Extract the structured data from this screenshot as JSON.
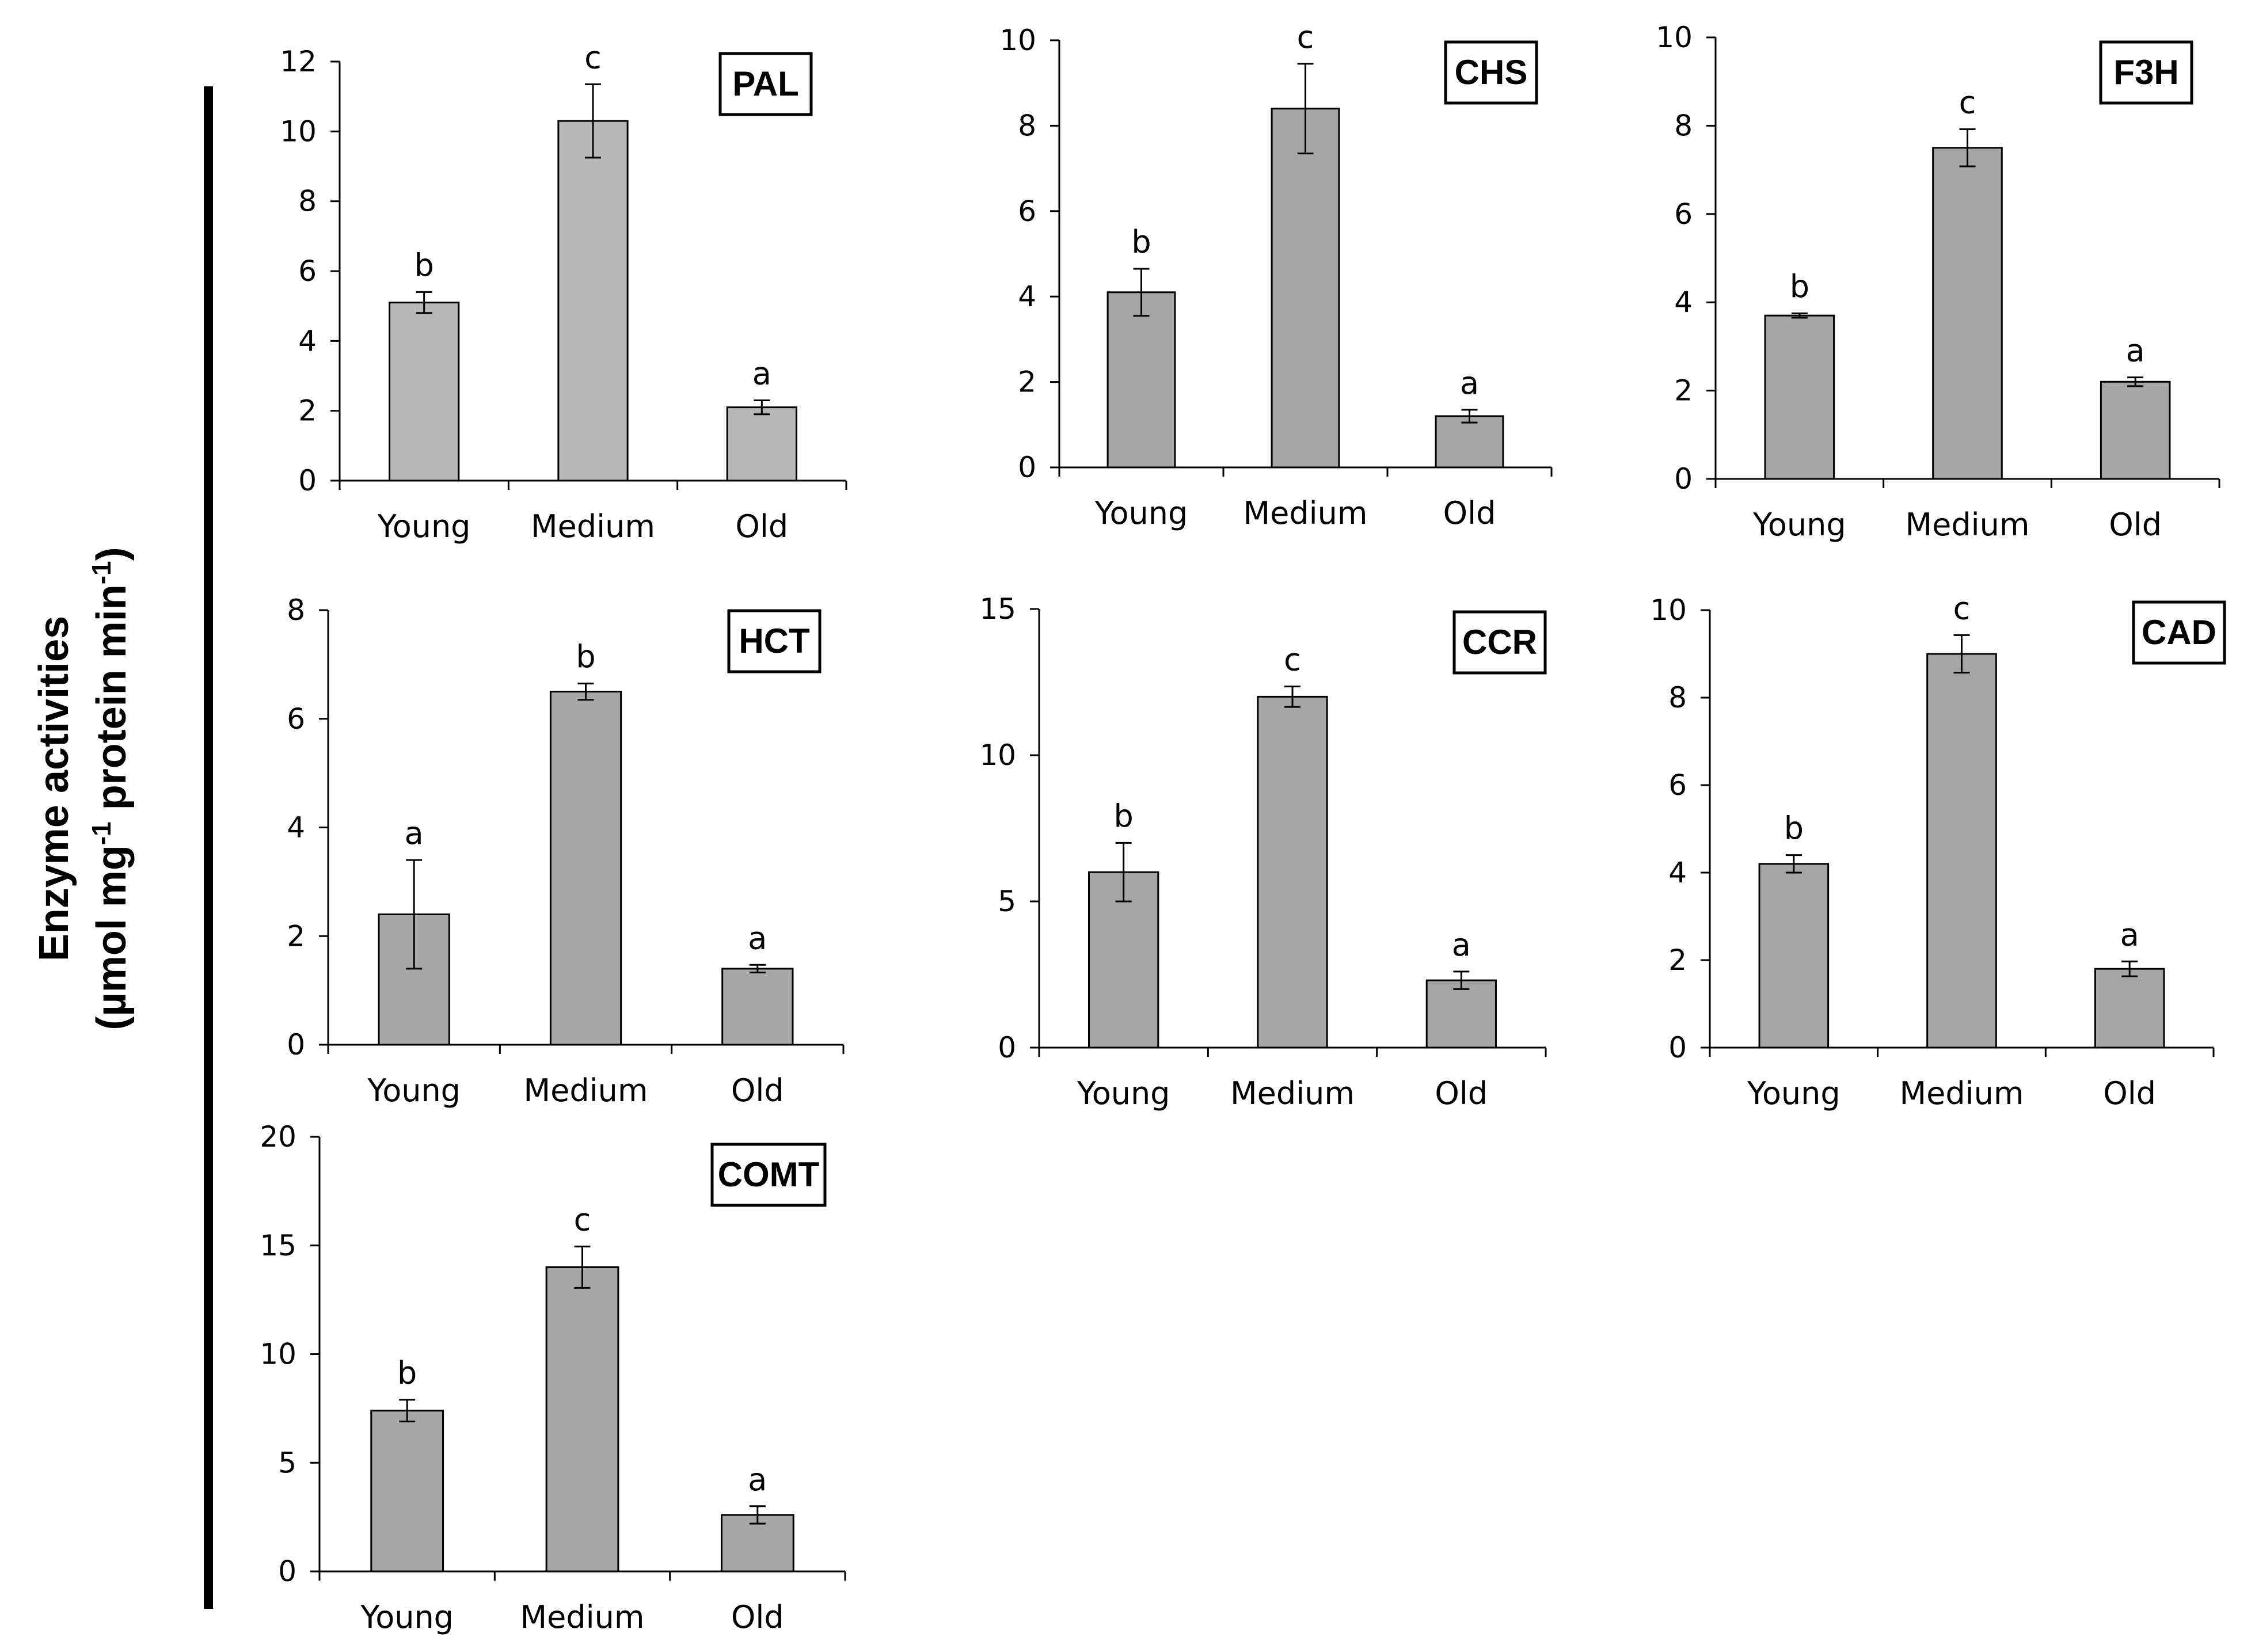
{
  "figure": {
    "ylabel_line1": "Enzyme activities",
    "ylabel_line2_a": "(µmol mg",
    "ylabel_line2_sup1": "-1",
    "ylabel_line2_b": " protein min",
    "ylabel_line2_sup2": "-1",
    "ylabel_line2_c": ")"
  },
  "colors": {
    "bar_light": "#b7b7b7",
    "bar_dark": "#a6a6a6",
    "axis": "#000000"
  },
  "chart_data": [
    {
      "type": "bar",
      "title": "PAL",
      "categories": [
        "Young",
        "Medium",
        "Old"
      ],
      "values": [
        5.1,
        10.3,
        2.1
      ],
      "errors": [
        0.3,
        1.05,
        0.2
      ],
      "letters": [
        "b",
        "c",
        "a"
      ],
      "ylim": [
        0,
        12
      ],
      "yticks": [
        0,
        2,
        4,
        6,
        8,
        10,
        12
      ],
      "bar_color": "light"
    },
    {
      "type": "bar",
      "title": "CHS",
      "categories": [
        "Young",
        "Medium",
        "Old"
      ],
      "values": [
        4.1,
        8.4,
        1.2
      ],
      "errors": [
        0.55,
        1.05,
        0.15
      ],
      "letters": [
        "b",
        "c",
        "a"
      ],
      "ylim": [
        0,
        10
      ],
      "yticks": [
        0,
        2,
        4,
        6,
        8,
        10
      ],
      "bar_color": "dark"
    },
    {
      "type": "bar",
      "title": "F3H",
      "categories": [
        "Young",
        "Medium",
        "Old"
      ],
      "values": [
        3.7,
        7.5,
        2.2
      ],
      "errors": [
        0.05,
        0.42,
        0.1
      ],
      "letters": [
        "b",
        "c",
        "a"
      ],
      "ylim": [
        0,
        10
      ],
      "yticks": [
        0,
        2,
        4,
        6,
        8,
        10
      ],
      "bar_color": "dark"
    },
    {
      "type": "bar",
      "title": "HCT",
      "categories": [
        "Young",
        "Medium",
        "Old"
      ],
      "values": [
        2.4,
        6.5,
        1.4
      ],
      "errors": [
        1.0,
        0.15,
        0.07
      ],
      "letters": [
        "a",
        "b",
        "a"
      ],
      "ylim": [
        0,
        8
      ],
      "yticks": [
        0,
        2,
        4,
        6,
        8
      ],
      "bar_color": "dark"
    },
    {
      "type": "bar",
      "title": "CCR",
      "categories": [
        "Young",
        "Medium",
        "Old"
      ],
      "values": [
        6.0,
        12.0,
        2.3
      ],
      "errors": [
        1.0,
        0.35,
        0.3
      ],
      "letters": [
        "b",
        "c",
        "a"
      ],
      "ylim": [
        0,
        15
      ],
      "yticks": [
        0,
        5,
        10,
        15
      ],
      "bar_color": "dark"
    },
    {
      "type": "bar",
      "title": "CAD",
      "categories": [
        "Young",
        "Medium",
        "Old"
      ],
      "values": [
        4.2,
        9.0,
        1.8
      ],
      "errors": [
        0.2,
        0.43,
        0.17
      ],
      "letters": [
        "b",
        "c",
        "a"
      ],
      "ylim": [
        0,
        10
      ],
      "yticks": [
        0,
        2,
        4,
        6,
        8,
        10
      ],
      "bar_color": "dark"
    },
    {
      "type": "bar",
      "title": "COMT",
      "categories": [
        "Young",
        "Medium",
        "Old"
      ],
      "values": [
        7.4,
        14.0,
        2.6
      ],
      "errors": [
        0.5,
        0.95,
        0.4
      ],
      "letters": [
        "b",
        "c",
        "a"
      ],
      "ylim": [
        0,
        20
      ],
      "yticks": [
        0,
        5,
        10,
        15,
        20
      ],
      "bar_color": "dark"
    }
  ]
}
